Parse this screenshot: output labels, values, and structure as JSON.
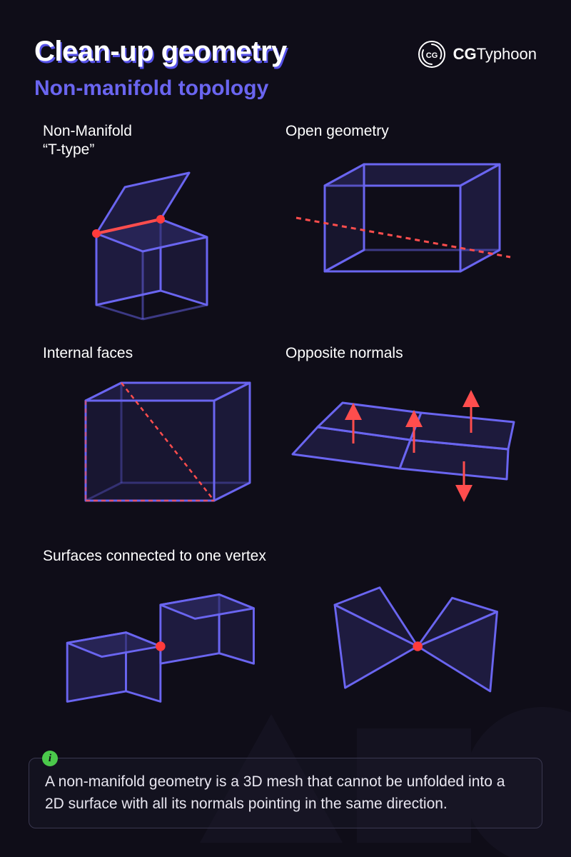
{
  "header": {
    "title": "Clean-up geometry",
    "subtitle": "Non-manifold topology",
    "brand_prefix": "CG",
    "brand_suffix": "Typhoon"
  },
  "colors": {
    "background": "#0f0d18",
    "stroke_primary": "#6a65f0",
    "stroke_bright": "#7b76ff",
    "fill_face": "#2b2860",
    "fill_face_alpha": 0.55,
    "accent_red": "#ff4d4d",
    "accent_vertex": "#ff3b3b",
    "text_white": "#ffffff",
    "subtitle_color": "#6a65f0",
    "info_border": "#3a3850",
    "info_icon_bg": "#4bc94b",
    "title_shadow": "#5652e8",
    "bg_shape": "#1a1828"
  },
  "style": {
    "stroke_width": 3,
    "stroke_width_thin": 2,
    "dash_pattern": "6,5",
    "vertex_radius": 6,
    "arrow_len": 40
  },
  "diagrams": [
    {
      "id": "t-type",
      "label": "Non-Manifold\n“T-type”"
    },
    {
      "id": "open-geometry",
      "label": "Open geometry"
    },
    {
      "id": "internal-faces",
      "label": "Internal faces"
    },
    {
      "id": "opposite-normals",
      "label": "Opposite normals"
    },
    {
      "id": "surfaces-one-vertex",
      "label": "Surfaces connected to one vertex"
    }
  ],
  "info": {
    "text": "A non-manifold geometry is a 3D mesh that cannot be unfolded into a 2D surface with all its normals pointing in the same direction."
  }
}
